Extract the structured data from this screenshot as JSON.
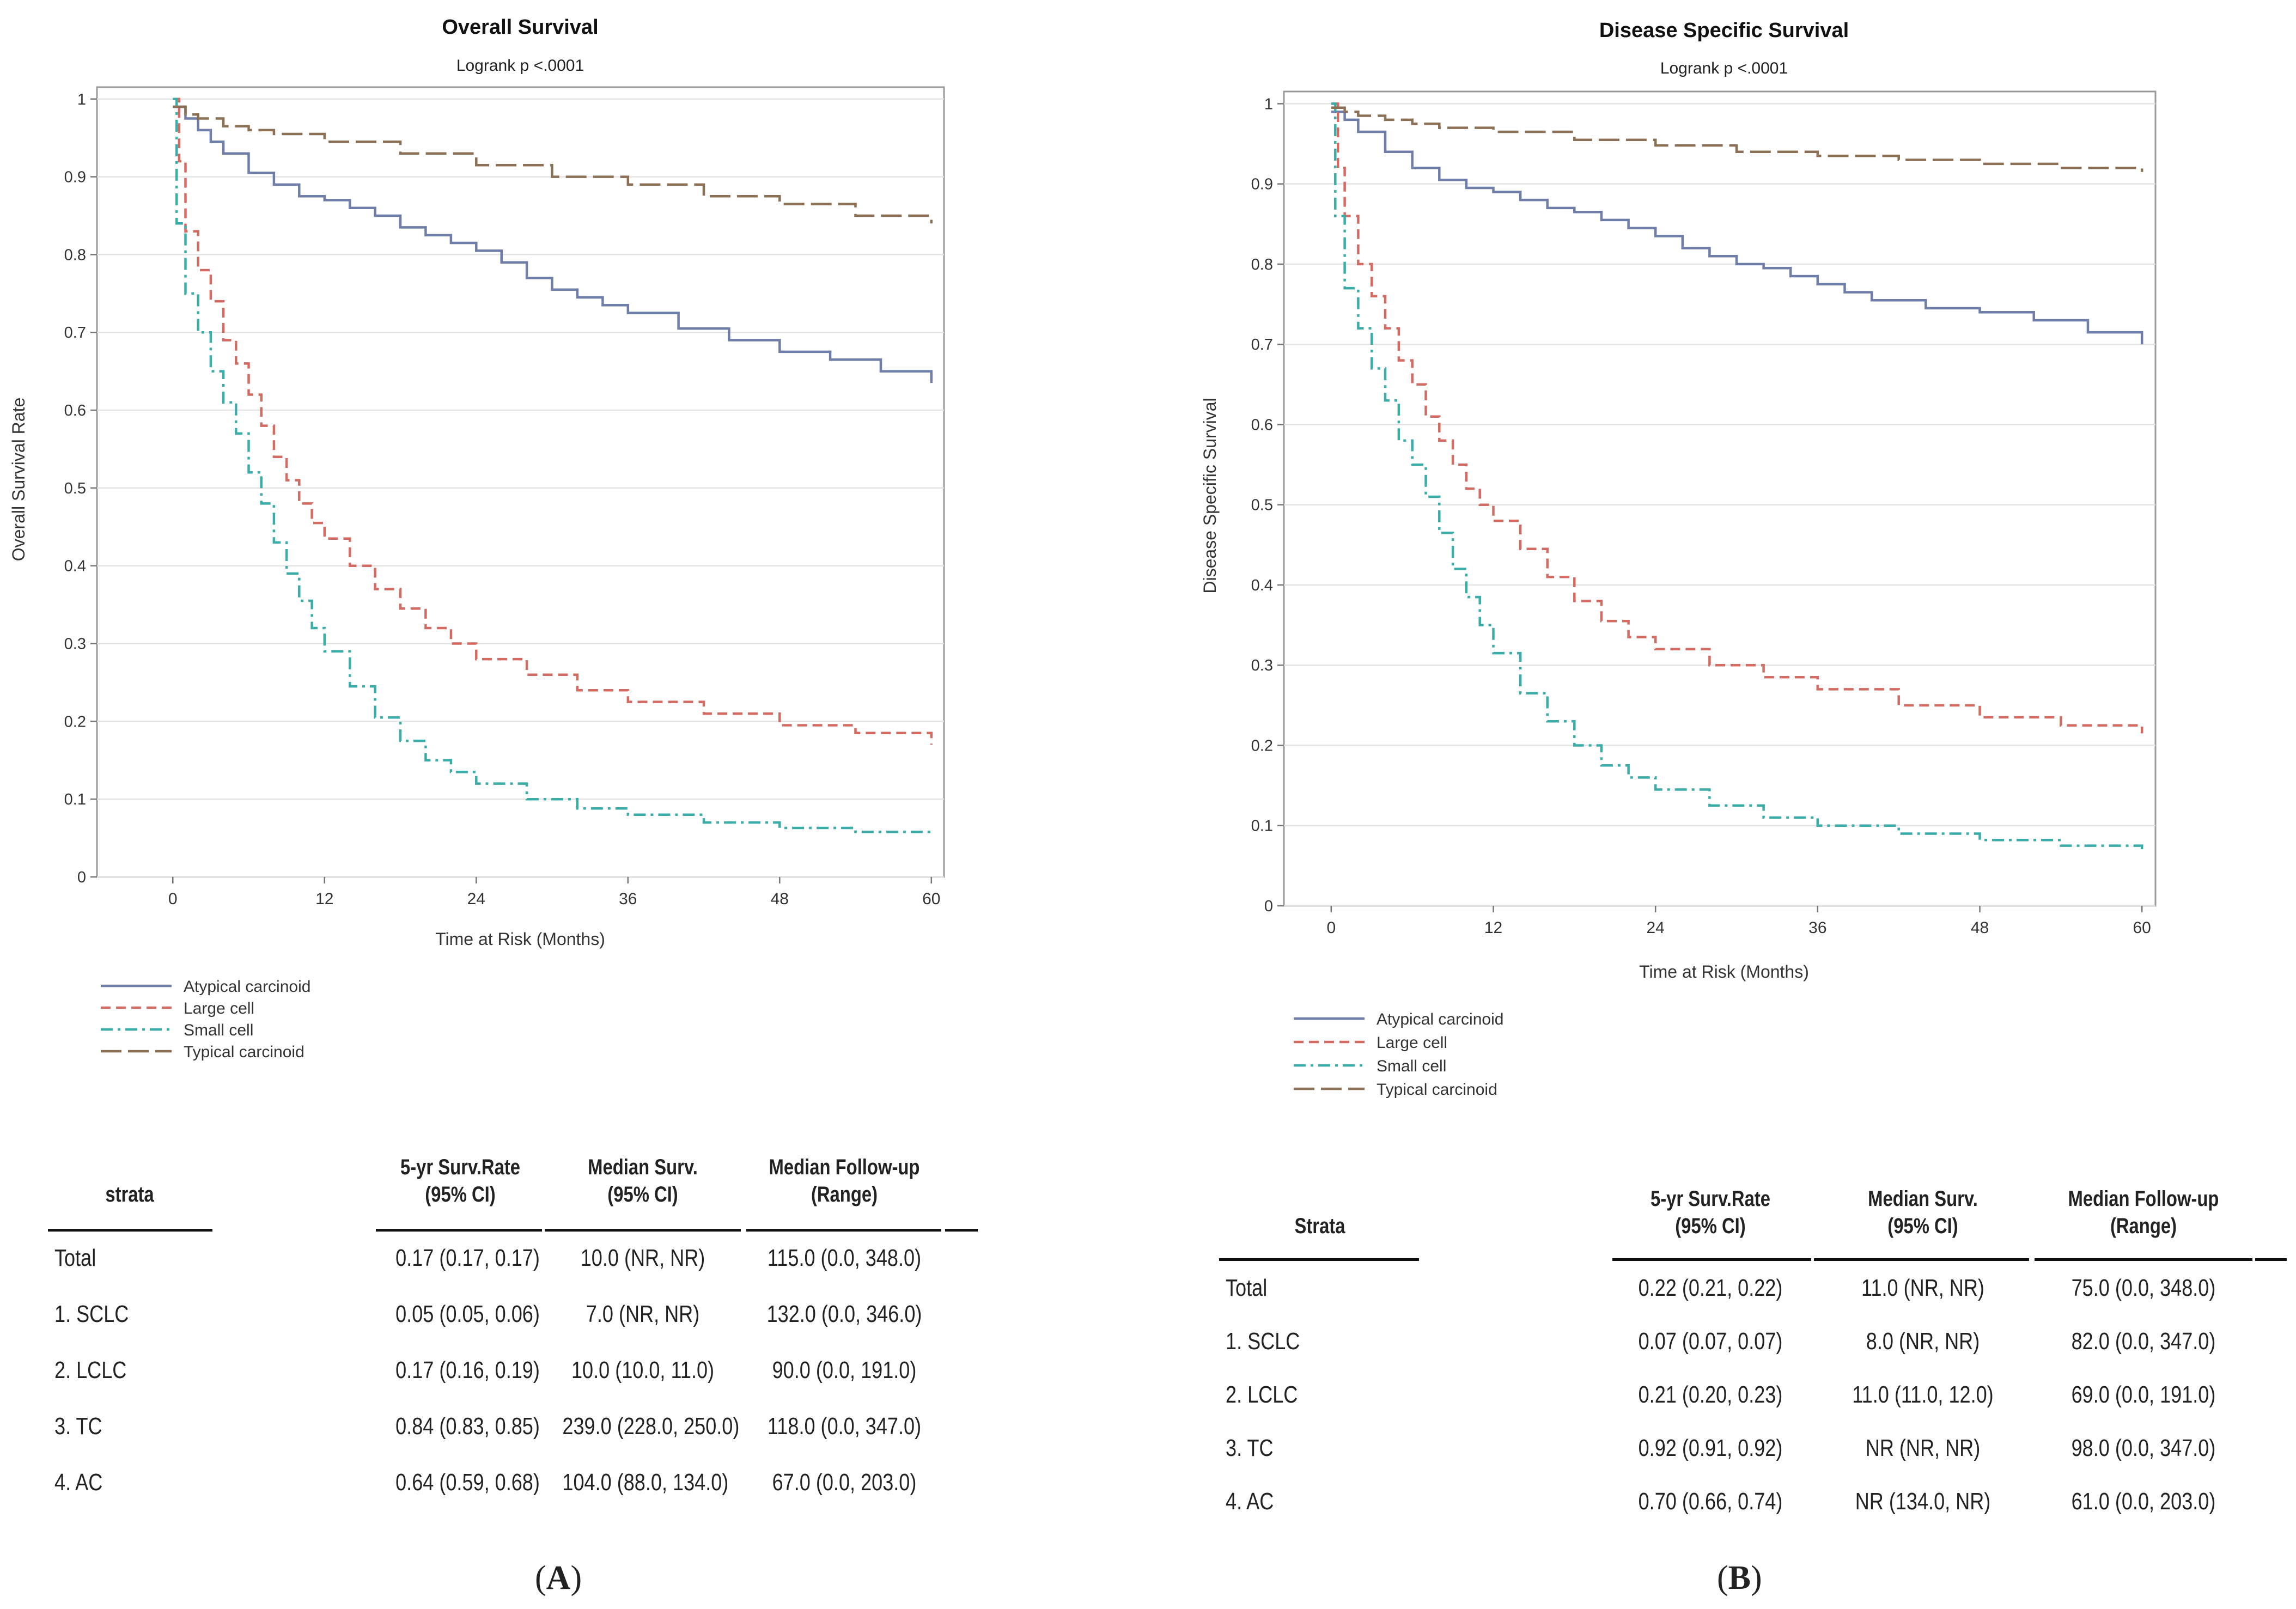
{
  "chart_data": [
    {
      "type": "line",
      "panel": "A",
      "title": "Overall Survival",
      "subtitle": "Logrank p <.0001",
      "xlabel": "Time at Risk (Months)",
      "ylabel": "Overall Survival Rate",
      "xlim": [
        -6,
        61
      ],
      "ylim": [
        0,
        1
      ],
      "xticks": [
        0,
        12,
        24,
        36,
        48,
        60
      ],
      "yticks": [
        0.0,
        0.1,
        0.2,
        0.3,
        0.4,
        0.5,
        0.6,
        0.7,
        0.8,
        0.9,
        1.0
      ],
      "grid": true,
      "legend_position": "bottom-left",
      "series": [
        {
          "name": "Atypical carcinoid",
          "style": "solid",
          "color": "#6f7ea8",
          "x": [
            0,
            1,
            2,
            3,
            4,
            6,
            8,
            10,
            12,
            14,
            16,
            18,
            20,
            22,
            24,
            26,
            28,
            30,
            32,
            34,
            36,
            40,
            44,
            48,
            52,
            56,
            60
          ],
          "y": [
            0.99,
            0.975,
            0.96,
            0.945,
            0.93,
            0.905,
            0.89,
            0.875,
            0.87,
            0.86,
            0.85,
            0.835,
            0.825,
            0.815,
            0.805,
            0.79,
            0.77,
            0.755,
            0.745,
            0.735,
            0.725,
            0.705,
            0.69,
            0.675,
            0.665,
            0.65,
            0.635
          ]
        },
        {
          "name": "Large cell",
          "style": "dashed",
          "color": "#d36b62",
          "x": [
            0,
            0.5,
            1,
            2,
            3,
            4,
            5,
            6,
            7,
            8,
            9,
            10,
            11,
            12,
            14,
            16,
            18,
            20,
            22,
            24,
            28,
            32,
            36,
            42,
            48,
            54,
            60
          ],
          "y": [
            1.0,
            0.92,
            0.83,
            0.78,
            0.74,
            0.69,
            0.66,
            0.62,
            0.58,
            0.54,
            0.51,
            0.48,
            0.455,
            0.435,
            0.4,
            0.37,
            0.345,
            0.32,
            0.3,
            0.28,
            0.26,
            0.24,
            0.225,
            0.21,
            0.195,
            0.185,
            0.17
          ]
        },
        {
          "name": "Small cell",
          "style": "dashdot",
          "color": "#3aada8",
          "x": [
            0,
            0.3,
            1,
            2,
            3,
            4,
            5,
            6,
            7,
            8,
            9,
            10,
            11,
            12,
            14,
            16,
            18,
            20,
            22,
            24,
            28,
            32,
            36,
            42,
            48,
            54,
            60
          ],
          "y": [
            1.0,
            0.84,
            0.75,
            0.7,
            0.65,
            0.61,
            0.57,
            0.52,
            0.48,
            0.43,
            0.39,
            0.355,
            0.32,
            0.29,
            0.245,
            0.205,
            0.175,
            0.15,
            0.135,
            0.12,
            0.1,
            0.088,
            0.08,
            0.07,
            0.063,
            0.058,
            0.055
          ]
        },
        {
          "name": "Typical carcinoid",
          "style": "longdash",
          "color": "#8c7055",
          "x": [
            0,
            1,
            2,
            4,
            6,
            8,
            12,
            18,
            24,
            30,
            36,
            42,
            48,
            54,
            60
          ],
          "y": [
            0.99,
            0.98,
            0.975,
            0.965,
            0.96,
            0.955,
            0.945,
            0.93,
            0.915,
            0.9,
            0.89,
            0.875,
            0.865,
            0.85,
            0.84
          ]
        }
      ]
    },
    {
      "type": "line",
      "panel": "B",
      "title": "Disease Specific Survival",
      "subtitle": "Logrank p <.0001",
      "xlabel": "Time at Risk (Months)",
      "ylabel": "Disease Specific Survival",
      "xlim": [
        -3.5,
        61
      ],
      "ylim": [
        0,
        1
      ],
      "xticks": [
        0,
        12,
        24,
        36,
        48,
        60
      ],
      "yticks": [
        0.0,
        0.1,
        0.2,
        0.3,
        0.4,
        0.5,
        0.6,
        0.7,
        0.8,
        0.9,
        1.0
      ],
      "grid": true,
      "legend_position": "bottom-left",
      "series": [
        {
          "name": "Atypical carcinoid",
          "style": "solid",
          "color": "#6f7ea8",
          "x": [
            0,
            1,
            2,
            4,
            6,
            8,
            10,
            12,
            14,
            16,
            18,
            20,
            22,
            24,
            26,
            28,
            30,
            32,
            34,
            36,
            38,
            40,
            44,
            48,
            52,
            56,
            60
          ],
          "y": [
            0.99,
            0.98,
            0.965,
            0.94,
            0.92,
            0.905,
            0.895,
            0.89,
            0.88,
            0.87,
            0.865,
            0.855,
            0.845,
            0.835,
            0.82,
            0.81,
            0.8,
            0.795,
            0.785,
            0.775,
            0.765,
            0.755,
            0.745,
            0.74,
            0.73,
            0.715,
            0.7
          ]
        },
        {
          "name": "Large cell",
          "style": "dashed",
          "color": "#d36b62",
          "x": [
            0,
            0.5,
            1,
            2,
            3,
            4,
            5,
            6,
            7,
            8,
            9,
            10,
            11,
            12,
            14,
            16,
            18,
            20,
            22,
            24,
            28,
            32,
            36,
            42,
            48,
            54,
            60
          ],
          "y": [
            1.0,
            0.92,
            0.86,
            0.8,
            0.76,
            0.72,
            0.68,
            0.65,
            0.61,
            0.58,
            0.55,
            0.52,
            0.5,
            0.48,
            0.445,
            0.41,
            0.38,
            0.355,
            0.335,
            0.32,
            0.3,
            0.285,
            0.27,
            0.25,
            0.235,
            0.225,
            0.215
          ]
        },
        {
          "name": "Small cell",
          "style": "dashdot",
          "color": "#3aada8",
          "x": [
            0,
            0.3,
            1,
            2,
            3,
            4,
            5,
            6,
            7,
            8,
            9,
            10,
            11,
            12,
            14,
            16,
            18,
            20,
            22,
            24,
            28,
            32,
            36,
            42,
            48,
            54,
            60
          ],
          "y": [
            1.0,
            0.86,
            0.77,
            0.72,
            0.67,
            0.63,
            0.58,
            0.55,
            0.51,
            0.465,
            0.42,
            0.385,
            0.35,
            0.315,
            0.265,
            0.23,
            0.2,
            0.175,
            0.16,
            0.145,
            0.125,
            0.11,
            0.1,
            0.09,
            0.082,
            0.075,
            0.07
          ]
        },
        {
          "name": "Typical carcinoid",
          "style": "longdash",
          "color": "#8c7055",
          "x": [
            0,
            1,
            2,
            4,
            6,
            8,
            12,
            18,
            24,
            30,
            36,
            42,
            48,
            54,
            60
          ],
          "y": [
            0.995,
            0.99,
            0.985,
            0.98,
            0.975,
            0.97,
            0.965,
            0.955,
            0.948,
            0.94,
            0.935,
            0.93,
            0.925,
            0.92,
            0.915
          ]
        }
      ]
    }
  ],
  "tables": [
    {
      "panel": "A",
      "headers": {
        "strata": "strata",
        "rate_l1": "5-yr Surv.Rate",
        "rate_l2": "(95% CI)",
        "median_l1": "Median Surv.",
        "median_l2": "(95% CI)",
        "follow_l1": "Median Follow-up",
        "follow_l2": "(Range)"
      },
      "rows": [
        {
          "strata": "Total",
          "rate": "0.17 (0.17, 0.17)",
          "median": "10.0 (NR, NR)",
          "follow": "115.0 (0.0, 348.0)"
        },
        {
          "strata": "1. SCLC",
          "rate": "0.05 (0.05, 0.06)",
          "median": "7.0 (NR, NR)",
          "follow": "132.0 (0.0, 346.0)"
        },
        {
          "strata": "2. LCLC",
          "rate": "0.17 (0.16, 0.19)",
          "median": "10.0 (10.0, 11.0)",
          "follow": "90.0 (0.0, 191.0)"
        },
        {
          "strata": "3. TC",
          "rate": "0.84 (0.83, 0.85)",
          "median": "239.0 (228.0, 250.0)",
          "follow": "118.0 (0.0, 347.0)"
        },
        {
          "strata": "4. AC",
          "rate": "0.64 (0.59, 0.68)",
          "median": "104.0 (88.0, 134.0)",
          "follow": "67.0 (0.0, 203.0)"
        }
      ]
    },
    {
      "panel": "B",
      "headers": {
        "strata": "Strata",
        "rate_l1": "5-yr Surv.Rate",
        "rate_l2": "(95% CI)",
        "median_l1": "Median Surv.",
        "median_l2": "(95% CI)",
        "follow_l1": "Median Follow-up",
        "follow_l2": "(Range)"
      },
      "rows": [
        {
          "strata": "Total",
          "rate": "0.22 (0.21, 0.22)",
          "median": "11.0 (NR, NR)",
          "follow": "75.0 (0.0, 348.0)"
        },
        {
          "strata": "1. SCLC",
          "rate": "0.07 (0.07, 0.07)",
          "median": "8.0 (NR, NR)",
          "follow": "82.0 (0.0, 347.0)"
        },
        {
          "strata": "2. LCLC",
          "rate": "0.21 (0.20, 0.23)",
          "median": "11.0 (11.0, 12.0)",
          "follow": "69.0 (0.0, 191.0)"
        },
        {
          "strata": "3. TC",
          "rate": "0.92 (0.91, 0.92)",
          "median": "NR (NR, NR)",
          "follow": "98.0 (0.0, 347.0)"
        },
        {
          "strata": "4. AC",
          "rate": "0.70 (0.66, 0.74)",
          "median": "NR (134.0, NR)",
          "follow": "61.0 (0.0, 203.0)"
        }
      ]
    }
  ],
  "captions": {
    "A": "A",
    "B": "B"
  }
}
